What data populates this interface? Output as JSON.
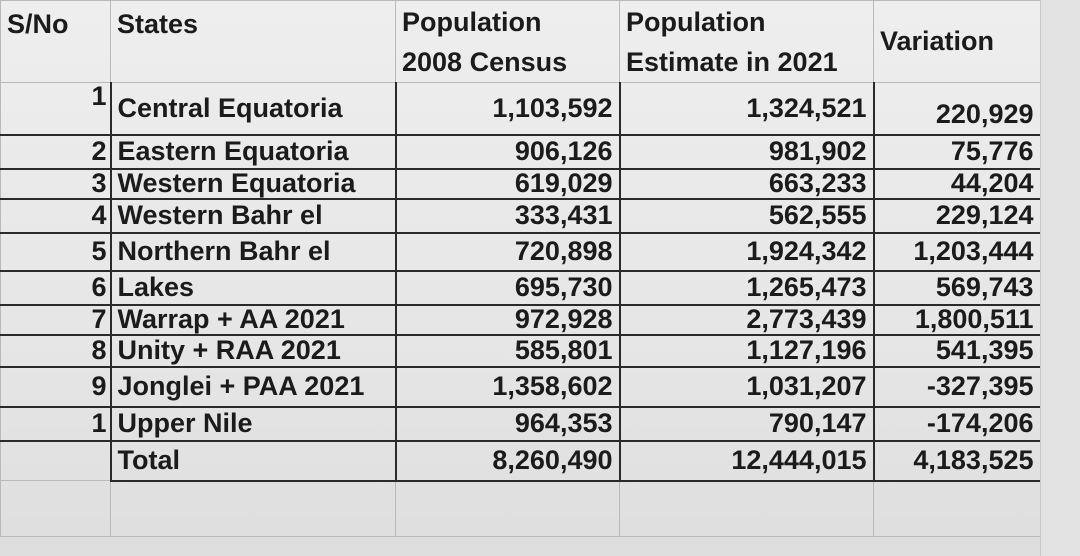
{
  "headers": {
    "sno": "S/No",
    "states": "States",
    "pop2008_line1": "Population",
    "pop2008_line2": "2008 Census",
    "pop2021_line1": "Population",
    "pop2021_line2": "Estimate in 2021",
    "variation": "Variation"
  },
  "rows": [
    {
      "sno": "1",
      "state": "Central Equatoria",
      "pop2008": "1,103,592",
      "pop2021": "1,324,521",
      "variation": "220,929"
    },
    {
      "sno": "2",
      "state": "Eastern Equatoria",
      "pop2008": "906,126",
      "pop2021": "981,902",
      "variation": "75,776"
    },
    {
      "sno": "3",
      "state": "Western Equatoria",
      "pop2008": "619,029",
      "pop2021": "663,233",
      "variation": "44,204"
    },
    {
      "sno": "4",
      "state": "Western Bahr el",
      "pop2008": "333,431",
      "pop2021": "562,555",
      "variation": "229,124"
    },
    {
      "sno": "5",
      "state": "Northern Bahr el",
      "pop2008": "720,898",
      "pop2021": "1,924,342",
      "variation": "1,203,444"
    },
    {
      "sno": "6",
      "state": "Lakes",
      "pop2008": "695,730",
      "pop2021": "1,265,473",
      "variation": "569,743"
    },
    {
      "sno": "7",
      "state": "Warrap + AA 2021",
      "pop2008": "972,928",
      "pop2021": "2,773,439",
      "variation": "1,800,511"
    },
    {
      "sno": "8",
      "state": "Unity + RAA 2021",
      "pop2008": "585,801",
      "pop2021": "1,127,196",
      "variation": "541,395"
    },
    {
      "sno": "9",
      "state": "Jonglei + PAA 2021",
      "pop2008": "1,358,602",
      "pop2021": "1,031,207",
      "variation": "-327,395"
    },
    {
      "sno": "1",
      "state": "Upper Nile",
      "pop2008": "964,353",
      "pop2021": "790,147",
      "variation": "-174,206"
    }
  ],
  "total": {
    "label": "Total",
    "pop2008": "8,260,490",
    "pop2021": "12,444,015",
    "variation": "4,183,525"
  }
}
